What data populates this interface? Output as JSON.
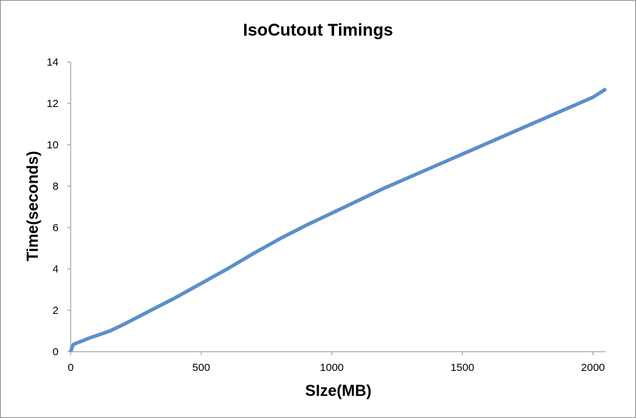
{
  "chart_data": {
    "type": "line",
    "title": "IsoCutout Timings",
    "xlabel": "SIze(MB)",
    "ylabel": "Time(seconds)",
    "xlim": [
      0,
      2050
    ],
    "ylim": [
      0,
      14
    ],
    "x_ticks": [
      0,
      500,
      1000,
      1500,
      2000
    ],
    "y_ticks": [
      0,
      2,
      4,
      6,
      8,
      10,
      12,
      14
    ],
    "grid": false,
    "legend": "none",
    "series": [
      {
        "color": "#5b8fc9",
        "x": [
          0,
          5,
          10,
          20,
          30,
          50,
          80,
          100,
          150,
          200,
          300,
          400,
          500,
          600,
          700,
          800,
          900,
          1000,
          1200,
          1400,
          1600,
          1800,
          2000,
          2050
        ],
        "y": [
          0,
          0.2,
          0.35,
          0.4,
          0.45,
          0.55,
          0.7,
          0.78,
          1.0,
          1.3,
          1.95,
          2.6,
          3.3,
          4.0,
          4.75,
          5.45,
          6.1,
          6.7,
          7.9,
          9.0,
          10.1,
          11.2,
          12.3,
          12.7
        ]
      }
    ]
  }
}
